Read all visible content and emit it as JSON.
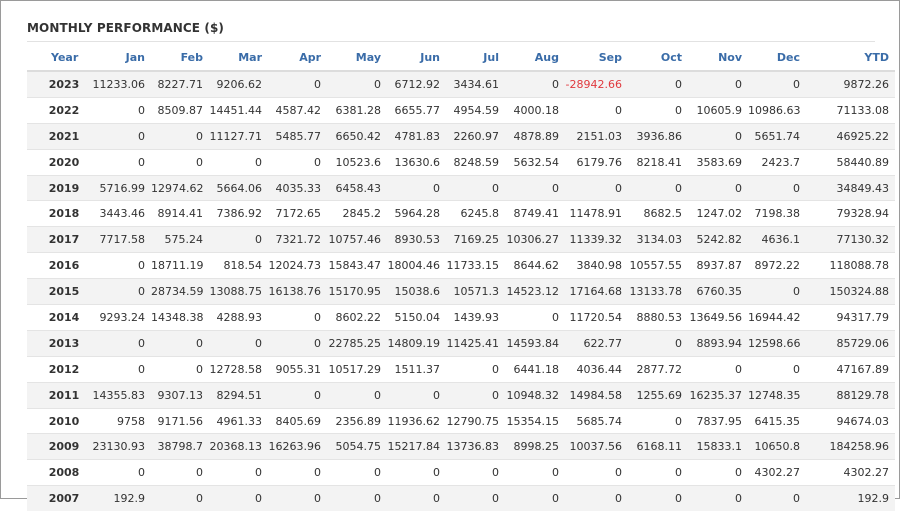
{
  "title": "MONTHLY PERFORMANCE ($)",
  "columns": [
    "Year",
    "Jan",
    "Feb",
    "Mar",
    "Apr",
    "May",
    "Jun",
    "Jul",
    "Aug",
    "Sep",
    "Oct",
    "Nov",
    "Dec",
    "YTD"
  ],
  "negative_color": "#e0393e",
  "header_color": "#3a6ca8",
  "rows": [
    [
      "2023",
      "11233.06",
      "8227.71",
      "9206.62",
      "0",
      "0",
      "6712.92",
      "3434.61",
      "0",
      "-28942.66",
      "0",
      "0",
      "0",
      "9872.26"
    ],
    [
      "2022",
      "0",
      "8509.87",
      "14451.44",
      "4587.42",
      "6381.28",
      "6655.77",
      "4954.59",
      "4000.18",
      "0",
      "0",
      "10605.9",
      "10986.63",
      "71133.08"
    ],
    [
      "2021",
      "0",
      "0",
      "11127.71",
      "5485.77",
      "6650.42",
      "4781.83",
      "2260.97",
      "4878.89",
      "2151.03",
      "3936.86",
      "0",
      "5651.74",
      "46925.22"
    ],
    [
      "2020",
      "0",
      "0",
      "0",
      "0",
      "10523.6",
      "13630.6",
      "8248.59",
      "5632.54",
      "6179.76",
      "8218.41",
      "3583.69",
      "2423.7",
      "58440.89"
    ],
    [
      "2019",
      "5716.99",
      "12974.62",
      "5664.06",
      "4035.33",
      "6458.43",
      "0",
      "0",
      "0",
      "0",
      "0",
      "0",
      "0",
      "34849.43"
    ],
    [
      "2018",
      "3443.46",
      "8914.41",
      "7386.92",
      "7172.65",
      "2845.2",
      "5964.28",
      "6245.8",
      "8749.41",
      "11478.91",
      "8682.5",
      "1247.02",
      "7198.38",
      "79328.94"
    ],
    [
      "2017",
      "7717.58",
      "575.24",
      "0",
      "7321.72",
      "10757.46",
      "8930.53",
      "7169.25",
      "10306.27",
      "11339.32",
      "3134.03",
      "5242.82",
      "4636.1",
      "77130.32"
    ],
    [
      "2016",
      "0",
      "18711.19",
      "818.54",
      "12024.73",
      "15843.47",
      "18004.46",
      "11733.15",
      "8644.62",
      "3840.98",
      "10557.55",
      "8937.87",
      "8972.22",
      "118088.78"
    ],
    [
      "2015",
      "0",
      "28734.59",
      "13088.75",
      "16138.76",
      "15170.95",
      "15038.6",
      "10571.3",
      "14523.12",
      "17164.68",
      "13133.78",
      "6760.35",
      "0",
      "150324.88"
    ],
    [
      "2014",
      "9293.24",
      "14348.38",
      "4288.93",
      "0",
      "8602.22",
      "5150.04",
      "1439.93",
      "0",
      "11720.54",
      "8880.53",
      "13649.56",
      "16944.42",
      "94317.79"
    ],
    [
      "2013",
      "0",
      "0",
      "0",
      "0",
      "22785.25",
      "14809.19",
      "11425.41",
      "14593.84",
      "622.77",
      "0",
      "8893.94",
      "12598.66",
      "85729.06"
    ],
    [
      "2012",
      "0",
      "0",
      "12728.58",
      "9055.31",
      "10517.29",
      "1511.37",
      "0",
      "6441.18",
      "4036.44",
      "2877.72",
      "0",
      "0",
      "47167.89"
    ],
    [
      "2011",
      "14355.83",
      "9307.13",
      "8294.51",
      "0",
      "0",
      "0",
      "0",
      "10948.32",
      "14984.58",
      "1255.69",
      "16235.37",
      "12748.35",
      "88129.78"
    ],
    [
      "2010",
      "9758",
      "9171.56",
      "4961.33",
      "8405.69",
      "2356.89",
      "11936.62",
      "12790.75",
      "15354.15",
      "5685.74",
      "0",
      "7837.95",
      "6415.35",
      "94674.03"
    ],
    [
      "2009",
      "23130.93",
      "38798.7",
      "20368.13",
      "16263.96",
      "5054.75",
      "15217.84",
      "13736.83",
      "8998.25",
      "10037.56",
      "6168.11",
      "15833.1",
      "10650.8",
      "184258.96"
    ],
    [
      "2008",
      "0",
      "0",
      "0",
      "0",
      "0",
      "0",
      "0",
      "0",
      "0",
      "0",
      "0",
      "4302.27",
      "4302.27"
    ],
    [
      "2007",
      "192.9",
      "0",
      "0",
      "0",
      "0",
      "0",
      "0",
      "0",
      "0",
      "0",
      "0",
      "0",
      "192.9"
    ]
  ]
}
